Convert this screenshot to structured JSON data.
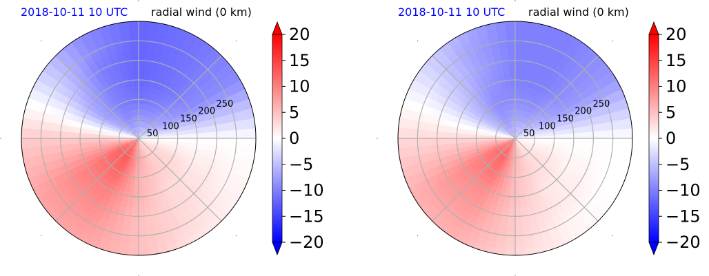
{
  "colors": {
    "positive": "#ff0000",
    "negative": "#0000ff",
    "neutral": "#ffffff",
    "date": "#0000ff",
    "grid": "#b0b0b0"
  },
  "chart_data": [
    {
      "type": "heatmap",
      "projection": "polar",
      "date_title": "2018-10-11 10 UTC",
      "title": "radial wind (0 km)",
      "radial_ticks": [
        "50",
        "100",
        "150",
        "200",
        "250"
      ],
      "rlim": [
        0,
        300
      ],
      "grid": true,
      "colorbar": {
        "ticks": [
          "20",
          "15",
          "10",
          "5",
          "0",
          "−5",
          "−10",
          "−15",
          "−20"
        ],
        "vmin": -20,
        "vmax": 20,
        "extend": "both"
      },
      "azimuth_deg": [
        0,
        30,
        60,
        90,
        120,
        150,
        180,
        210,
        240,
        270,
        300,
        330
      ],
      "radius": [
        0,
        50,
        100,
        150,
        200,
        250,
        300
      ],
      "values": [
        [
          0,
          0,
          0,
          0,
          0,
          0,
          0
        ],
        [
          -2,
          -6,
          -8,
          -9,
          -9,
          -9,
          -9
        ],
        [
          -3,
          -8,
          -10,
          -11,
          -11,
          -11,
          -11
        ],
        [
          -4,
          -8,
          -11,
          -12,
          -12,
          -12,
          -12
        ],
        [
          -5,
          -9,
          -10,
          -10,
          -10,
          -9,
          -9
        ],
        [
          -3,
          -6,
          -7,
          -6,
          -4,
          -3,
          -3
        ],
        [
          2,
          3,
          4,
          4,
          4,
          4,
          4
        ],
        [
          8,
          12,
          11,
          10,
          9,
          8,
          7
        ],
        [
          10,
          13,
          12,
          10,
          9,
          8,
          7
        ],
        [
          5,
          7,
          6,
          6,
          5,
          5,
          5
        ],
        [
          3,
          4,
          4,
          3,
          3,
          3,
          2
        ],
        [
          2,
          3,
          3,
          2,
          2,
          1,
          1
        ]
      ]
    },
    {
      "type": "heatmap",
      "projection": "polar",
      "date_title": "2018-10-11 10 UTC",
      "title": "radial wind (0 km)",
      "radial_ticks": [
        "50",
        "100",
        "150",
        "200",
        "250"
      ],
      "rlim": [
        0,
        300
      ],
      "grid": true,
      "colorbar": {
        "ticks": [
          "20",
          "15",
          "10",
          "5",
          "0",
          "−5",
          "−10",
          "−15",
          "−20"
        ],
        "vmin": -20,
        "vmax": 20,
        "extend": "both"
      },
      "azimuth_deg": [
        0,
        30,
        60,
        90,
        120,
        150,
        180,
        210,
        240,
        270,
        300,
        330
      ],
      "radius": [
        0,
        50,
        100,
        150,
        200,
        250,
        300
      ],
      "values": [
        [
          0,
          0,
          0,
          0,
          0,
          0,
          0
        ],
        [
          -2,
          -5,
          -7,
          -8,
          -8,
          -8,
          -8
        ],
        [
          -3,
          -7,
          -9,
          -10,
          -10,
          -10,
          -10
        ],
        [
          -4,
          -7,
          -9,
          -10,
          -10,
          -10,
          -10
        ],
        [
          -5,
          -8,
          -9,
          -8,
          -7,
          -7,
          -6
        ],
        [
          -3,
          -5,
          -5,
          -4,
          -3,
          -2,
          -2
        ],
        [
          2,
          3,
          3,
          3,
          3,
          3,
          3
        ],
        [
          8,
          11,
          10,
          9,
          8,
          7,
          6
        ],
        [
          10,
          12,
          11,
          9,
          8,
          7,
          6
        ],
        [
          5,
          6,
          5,
          5,
          4,
          4,
          3
        ],
        [
          2,
          3,
          3,
          2,
          2,
          1,
          1
        ],
        [
          1,
          2,
          2,
          1,
          1,
          0,
          0
        ]
      ]
    }
  ]
}
